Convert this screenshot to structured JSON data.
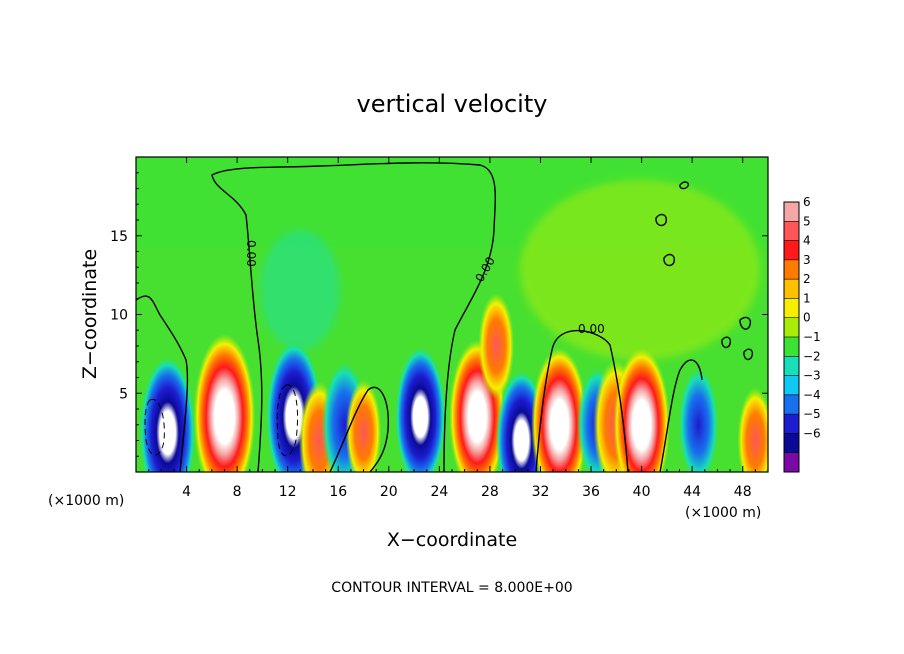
{
  "chart_data": {
    "type": "heatmap",
    "title": "vertical velocity",
    "xlabel": "X−coordinate",
    "ylabel": "Z−coordinate",
    "x_unit": "(×1000 m)",
    "x_unit_right": "(×1000 m)",
    "xlim": [
      0,
      50
    ],
    "ylim": [
      0,
      20
    ],
    "x_ticks": [
      4,
      8,
      12,
      16,
      20,
      24,
      28,
      32,
      36,
      40,
      44,
      48
    ],
    "y_ticks": [
      5,
      10,
      15
    ],
    "colorbar": {
      "levels": [
        6,
        5,
        4,
        3,
        2,
        1,
        0,
        -1,
        -2,
        -3,
        -4,
        -5,
        -6
      ],
      "tick_labels": [
        "6",
        "5",
        "4",
        "3",
        "2",
        "1",
        "0",
        "−1",
        "−2",
        "−3",
        "−4",
        "−5",
        "−6"
      ],
      "colors": [
        "#f5a7a7",
        "#ff5757",
        "#ff1a1a",
        "#ff7b00",
        "#ffc000",
        "#f5f000",
        "#a8ec0a",
        "#3ce236",
        "#17e0b8",
        "#10c8f2",
        "#1870ee",
        "#1c1cd0",
        "#0a0a96",
        "#7a0aa6"
      ]
    },
    "contour_labels": [
      "0.00",
      "0.00",
      "0.00"
    ],
    "footer": "CONTOUR INTERVAL = 8.000E+00",
    "cells": [
      {
        "x": 2.5,
        "z": 2.5,
        "w": -7
      },
      {
        "x": 7,
        "z": 3.5,
        "w": 8
      },
      {
        "x": 12.5,
        "z": 3.5,
        "w": -7
      },
      {
        "x": 14.5,
        "z": 2,
        "w": 4
      },
      {
        "x": 16.5,
        "z": 3,
        "w": -5
      },
      {
        "x": 18,
        "z": 2.5,
        "w": 3
      },
      {
        "x": 22.5,
        "z": 3.5,
        "w": -6
      },
      {
        "x": 27,
        "z": 3.5,
        "w": 7
      },
      {
        "x": 28.5,
        "z": 8,
        "w": 3
      },
      {
        "x": 30.5,
        "z": 2,
        "w": -6
      },
      {
        "x": 33.5,
        "z": 3,
        "w": 7
      },
      {
        "x": 36.5,
        "z": 3,
        "w": -4
      },
      {
        "x": 38,
        "z": 3,
        "w": 5
      },
      {
        "x": 40,
        "z": 3,
        "w": 7
      },
      {
        "x": 44.5,
        "z": 3,
        "w": -4
      },
      {
        "x": 49,
        "z": 2,
        "w": 3
      }
    ]
  }
}
